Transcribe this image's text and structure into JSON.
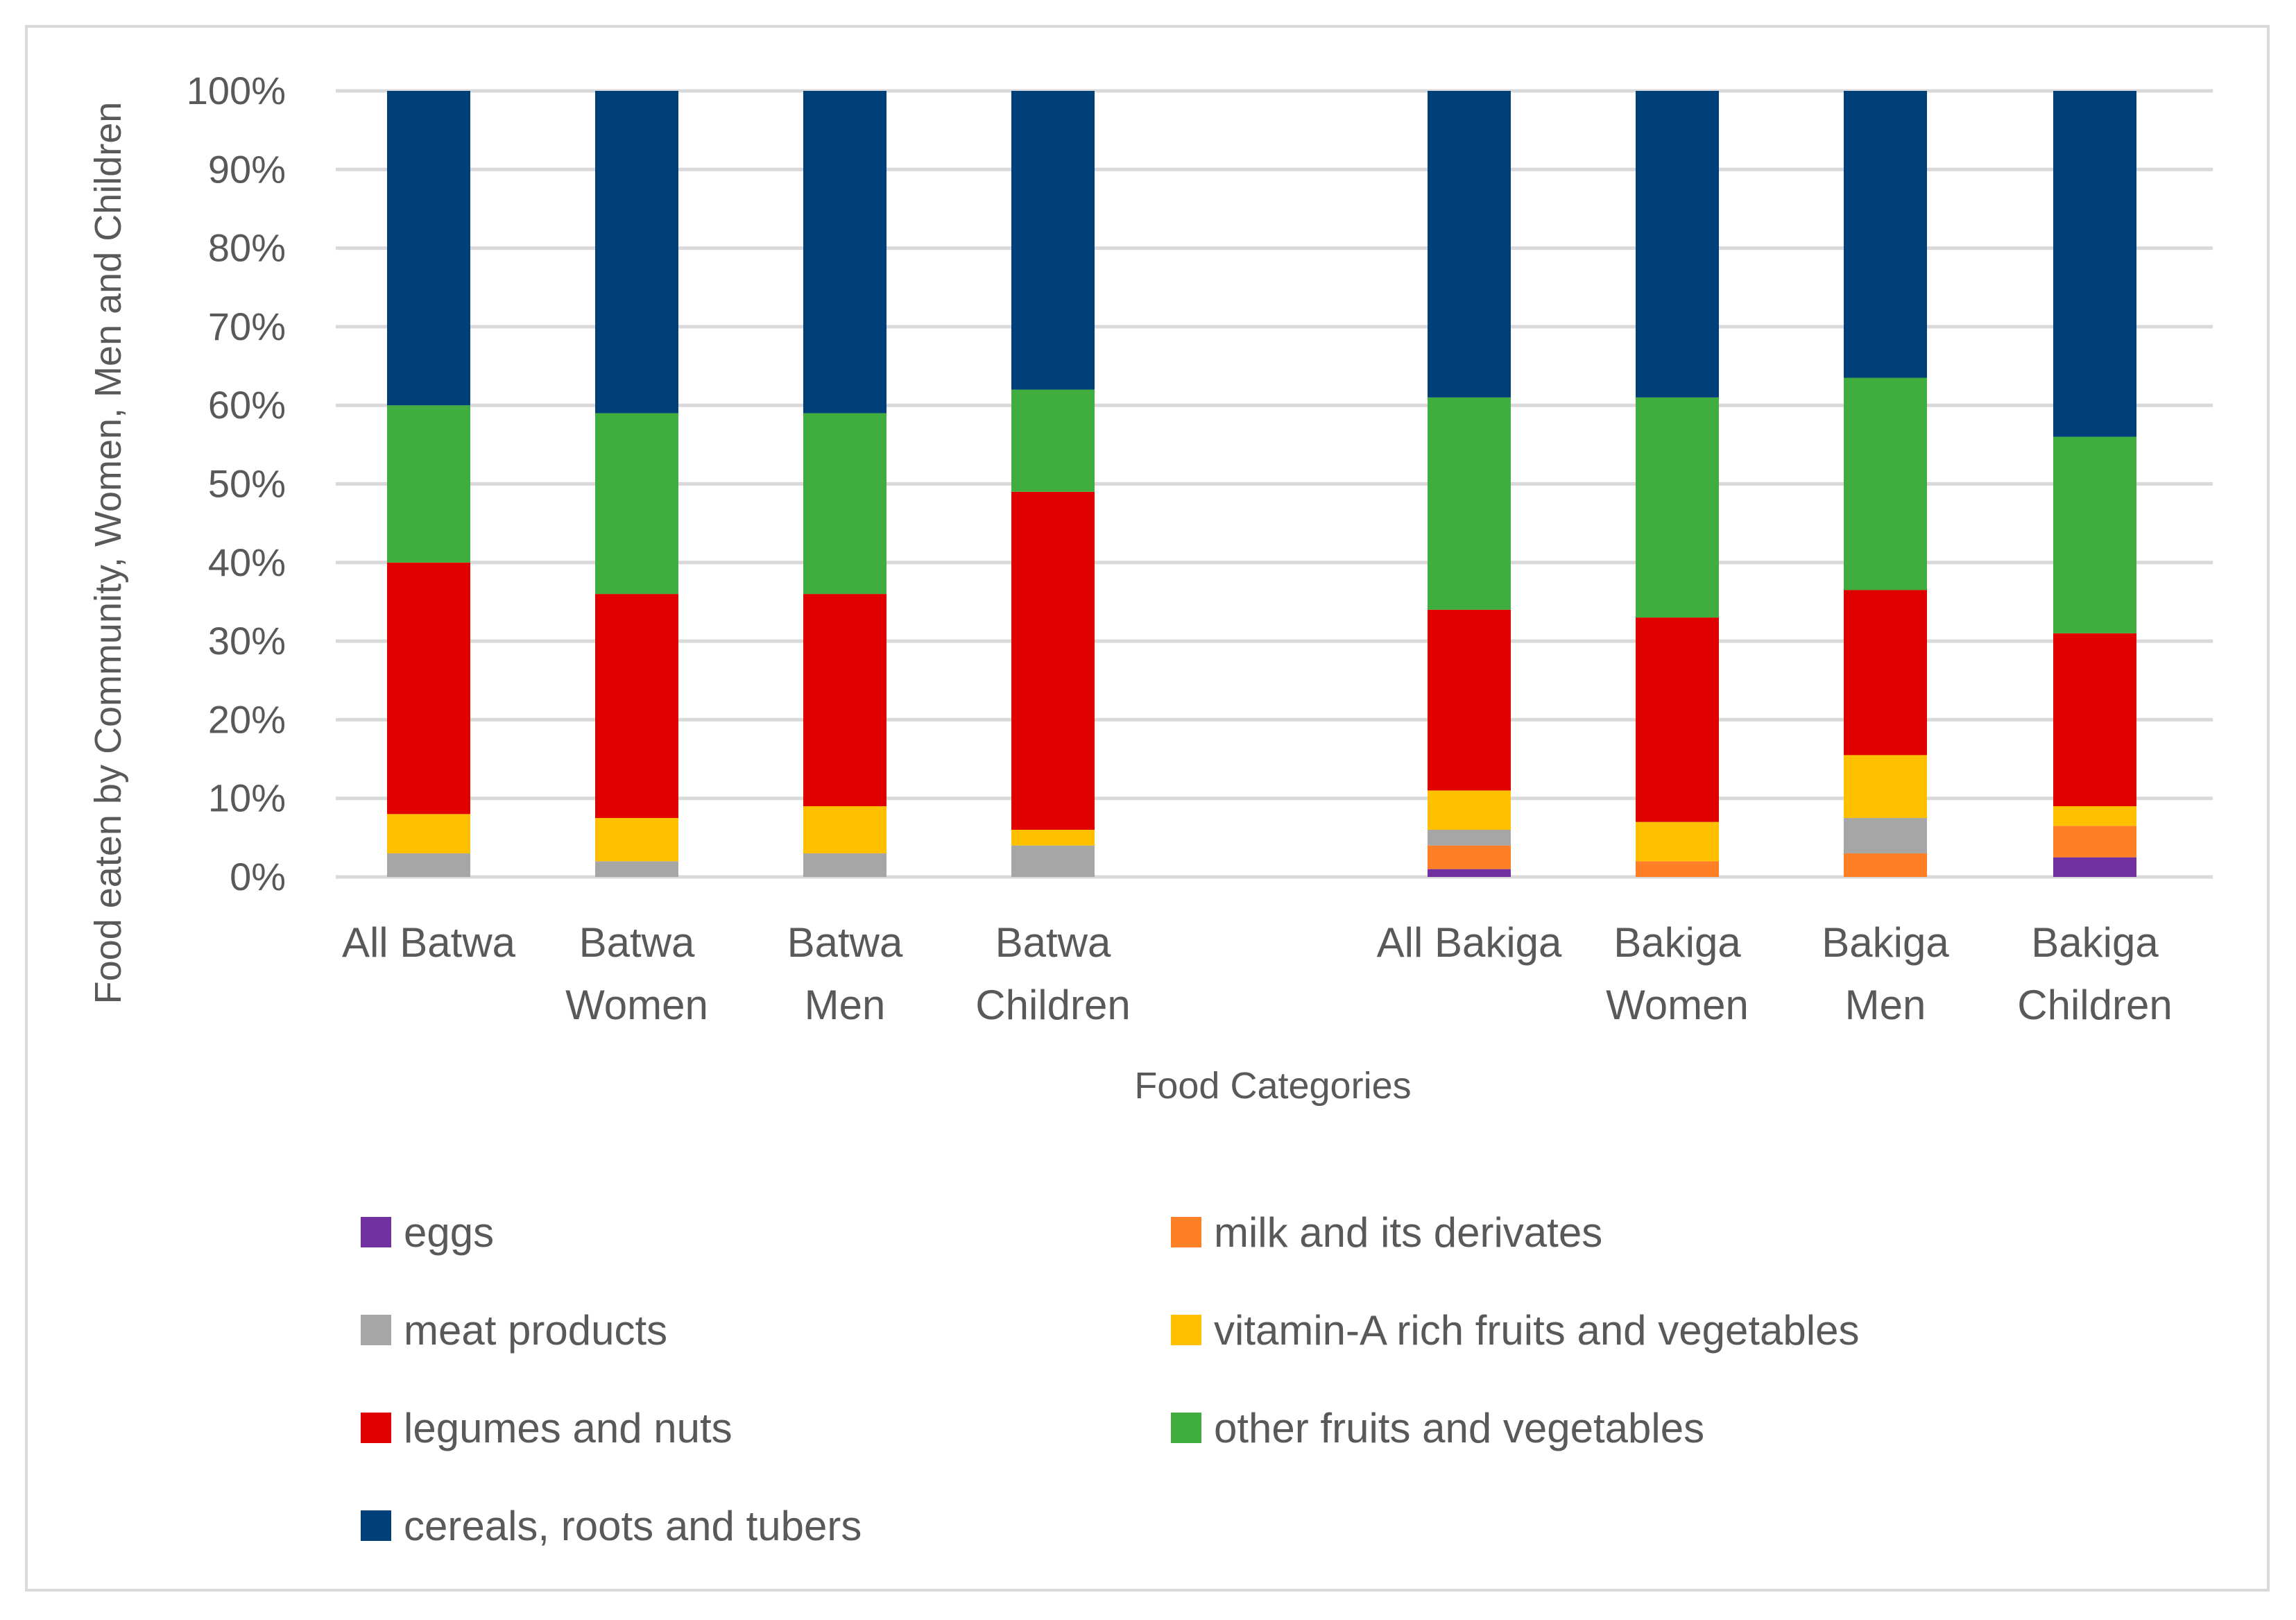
{
  "chart_data": {
    "type": "bar",
    "stacked": "percent",
    "title": "",
    "xlabel": "Food Categories",
    "ylabel": "Food eaten by Community, Women, Men and Children",
    "ylim": [
      0,
      100
    ],
    "y_ticks": [
      "0%",
      "10%",
      "20%",
      "30%",
      "40%",
      "50%",
      "60%",
      "70%",
      "80%",
      "90%",
      "100%"
    ],
    "grid": true,
    "legend_position": "bottom",
    "categories": [
      [
        "All Batwa"
      ],
      [
        "Batwa",
        "Women"
      ],
      [
        "Batwa",
        "Men"
      ],
      [
        "Batwa",
        "Children"
      ],
      [
        "All Bakiga"
      ],
      [
        "Bakiga",
        "Women"
      ],
      [
        "Bakiga",
        "Men"
      ],
      [
        "Bakiga",
        "Children"
      ]
    ],
    "series": [
      {
        "name": "eggs",
        "color": "#7030a0",
        "values": [
          0,
          0,
          0,
          0,
          1,
          0,
          0,
          2.5
        ]
      },
      {
        "name": "milk and its derivates",
        "color": "#ff7f27",
        "values": [
          0,
          0,
          0,
          0,
          3,
          2,
          3,
          4
        ]
      },
      {
        "name": "meat products",
        "color": "#a6a6a6",
        "values": [
          3,
          2,
          3,
          4,
          2,
          0,
          4.5,
          0
        ]
      },
      {
        "name": "vitamin-A rich fruits and vegetables",
        "color": "#ffc000",
        "values": [
          5,
          5.5,
          6,
          2,
          5,
          5,
          8,
          2.5
        ]
      },
      {
        "name": "legumes and nuts",
        "color": "#e00000",
        "values": [
          32,
          28.5,
          27,
          43,
          23,
          26,
          21,
          22
        ]
      },
      {
        "name": "other fruits and vegetables",
        "color": "#3fae3f",
        "values": [
          20,
          23,
          23,
          13,
          27,
          28,
          27,
          25
        ]
      },
      {
        "name": "cereals, roots and tubers",
        "color": "#003f7a",
        "values": [
          40,
          41,
          41,
          38,
          39,
          39,
          36.5,
          44
        ]
      }
    ]
  }
}
